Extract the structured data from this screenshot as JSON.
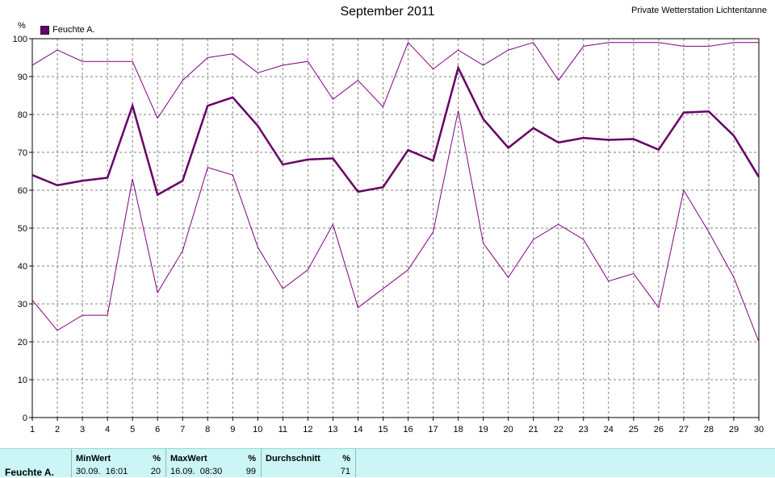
{
  "header": {
    "title": "September 2011",
    "station": "Private Wetterstation Lichtentanne"
  },
  "legend": {
    "label": "Feuchte A."
  },
  "chart_data": {
    "type": "line",
    "title": "September 2011",
    "ylabel": "%",
    "xlabel": "",
    "ylim": [
      0,
      100
    ],
    "xlim": [
      1,
      30
    ],
    "yticks": [
      0,
      10,
      20,
      30,
      40,
      50,
      60,
      70,
      80,
      90,
      100
    ],
    "x": [
      1,
      2,
      3,
      4,
      5,
      6,
      7,
      8,
      9,
      10,
      11,
      12,
      13,
      14,
      15,
      16,
      17,
      18,
      19,
      20,
      21,
      22,
      23,
      24,
      25,
      26,
      27,
      28,
      29,
      30
    ],
    "grid": true,
    "legend_position": "top-left",
    "series": [
      {
        "name": "Feuchte A.",
        "role": "max",
        "color": "#800080",
        "values": [
          93,
          97,
          94,
          94,
          94,
          79,
          89,
          95,
          96,
          91,
          93,
          94,
          84,
          89,
          82,
          99,
          92,
          97,
          93,
          97,
          99,
          89,
          98,
          99,
          99,
          99,
          98,
          98,
          99,
          99
        ]
      },
      {
        "name": "Feuchte A.",
        "role": "mean",
        "color": "#660066",
        "values": [
          64,
          61.3,
          62.5,
          63.3,
          82.3,
          58.8,
          62.5,
          82.3,
          84.5,
          77,
          66.8,
          68.1,
          68.4,
          59.6,
          60.8,
          70.6,
          67.8,
          92.3,
          78.8,
          71.2,
          76.4,
          72.6,
          73.8,
          73.3,
          73.5,
          70.7,
          80.5,
          80.8,
          74.4,
          63.5
        ]
      },
      {
        "name": "Feuchte A.",
        "role": "min",
        "color": "#800080",
        "values": [
          31,
          23,
          27,
          27,
          63,
          33,
          44,
          66,
          64,
          45,
          34,
          39,
          51,
          29,
          34,
          39,
          49,
          81,
          46,
          37,
          47,
          51,
          47,
          36,
          38,
          29,
          60,
          49,
          37,
          20
        ]
      }
    ]
  },
  "stats": {
    "series_name": "Feuchte A.",
    "min_header": "MinWert",
    "min_unit": "%",
    "min_time": "30.09.  16:01",
    "min_value": "20",
    "max_header": "MaxWert",
    "max_unit": "%",
    "max_time": "16.09.  08:30",
    "max_value": "99",
    "avg_header": "Durchschnitt",
    "avg_unit": "%",
    "avg_value": "71"
  }
}
